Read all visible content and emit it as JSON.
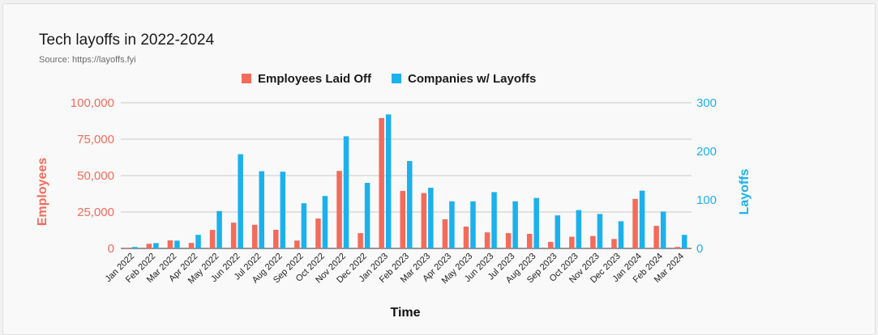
{
  "chart_data": {
    "type": "bar",
    "title": "Tech layoffs in 2022-2024",
    "subtitle": "Source: https://layoffs.fyi",
    "xlabel": "Time",
    "ylabel_left": "Employees",
    "ylabel_right": "Layoffs",
    "categories": [
      "Jan 2022",
      "Feb 2022",
      "Mar 2022",
      "Apr 2022",
      "May 2022",
      "Jun 2022",
      "Jul 2022",
      "Aug 2022",
      "Sep 2022",
      "Oct 2022",
      "Nov 2022",
      "Dec 2022",
      "Jan 2023",
      "Feb 2023",
      "Mar 2023",
      "Apr 2023",
      "May 2023",
      "Jun 2023",
      "Jul 2023",
      "Aug 2023",
      "Sep 2023",
      "Oct 2023",
      "Nov 2023",
      "Dec 2023",
      "Jan 2024",
      "Feb 2024",
      "Mar 2024"
    ],
    "left_axis": {
      "ylim": [
        0,
        100000
      ],
      "ticks": [
        0,
        25000,
        50000,
        75000,
        100000
      ],
      "tick_labels": [
        "0",
        "25,000",
        "50,000",
        "75,000",
        "100,000"
      ]
    },
    "right_axis": {
      "ylim": [
        0,
        300
      ],
      "ticks": [
        0,
        100,
        200,
        300
      ],
      "tick_labels": [
        "0",
        "100",
        "200",
        "300"
      ]
    },
    "series": [
      {
        "name": "Employees Laid Off",
        "color": "#f26b5b",
        "axis": "left",
        "values": [
          500,
          3200,
          5500,
          3800,
          12700,
          17700,
          16200,
          12800,
          5400,
          20500,
          53200,
          10500,
          89500,
          39500,
          38000,
          20000,
          15000,
          11000,
          10500,
          10000,
          4500,
          8000,
          8500,
          6500,
          34000,
          15500,
          1000
        ]
      },
      {
        "name": "Companies w/ Layoffs",
        "color": "#1bb1ec",
        "axis": "right",
        "values": [
          3,
          11,
          16,
          28,
          77,
          194,
          159,
          158,
          93,
          108,
          231,
          135,
          276,
          180,
          125,
          97,
          97,
          116,
          97,
          104,
          68,
          79,
          71,
          56,
          119,
          76,
          28
        ]
      }
    ],
    "grid": true,
    "legend_position": "top-center"
  }
}
